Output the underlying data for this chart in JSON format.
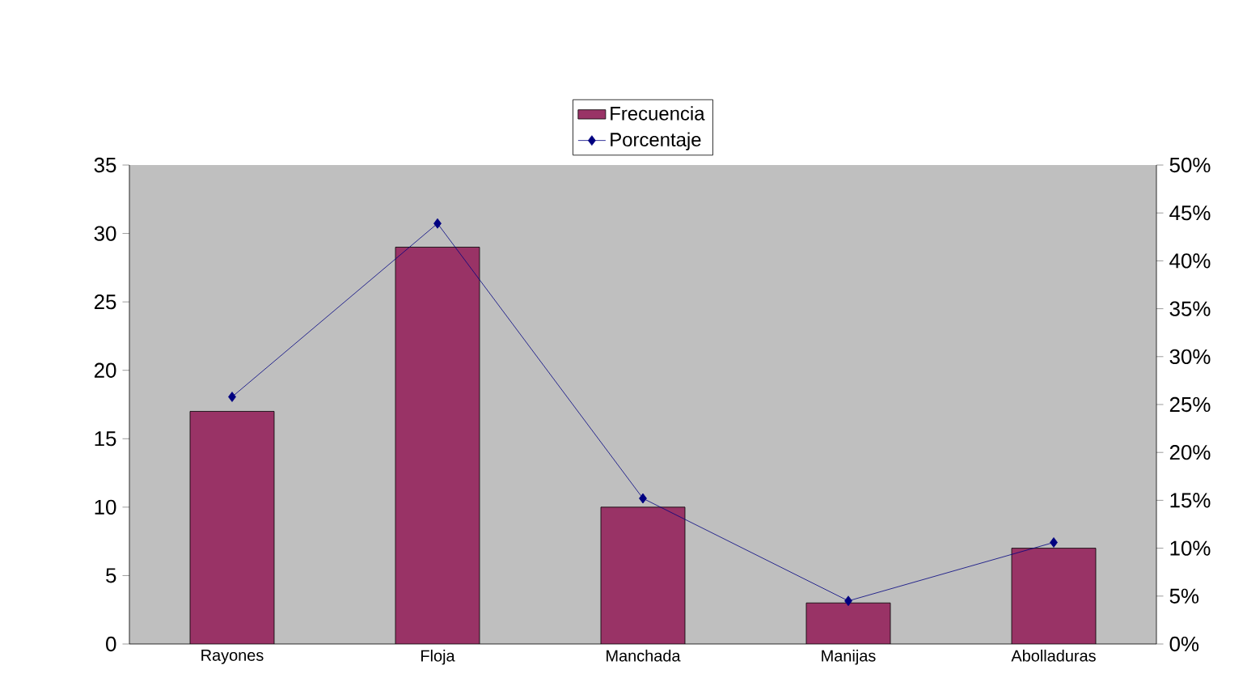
{
  "chart_data": {
    "type": "bar",
    "categories": [
      "Rayones",
      "Floja",
      "Manchada",
      "Manijas",
      "Abolladuras"
    ],
    "series": [
      {
        "name": "Frecuencia",
        "color": "#993366",
        "values": [
          17,
          29,
          10,
          3,
          7
        ]
      },
      {
        "name": "Porcentaje",
        "type": "line",
        "axis": "y2",
        "color": "#000080",
        "marker": "diamond",
        "values": [
          25.8,
          43.9,
          15.2,
          4.5,
          10.6
        ]
      }
    ],
    "ylim": [
      0,
      35
    ],
    "yticks": [
      0,
      5,
      10,
      15,
      20,
      25,
      30,
      35
    ],
    "y2lim": [
      0,
      50
    ],
    "y2ticks": [
      {
        "value": 0,
        "label": "0%"
      },
      {
        "value": 5,
        "label": "5%"
      },
      {
        "value": 10,
        "label": "10%"
      },
      {
        "value": 15,
        "label": "15%"
      },
      {
        "value": 20,
        "label": "20%"
      },
      {
        "value": 25,
        "label": "25%"
      },
      {
        "value": 30,
        "label": "30%"
      },
      {
        "value": 35,
        "label": "35%"
      },
      {
        "value": 40,
        "label": "40%"
      },
      {
        "value": 45,
        "label": "45%"
      },
      {
        "value": 50,
        "label": "50%"
      }
    ],
    "legend": "top",
    "grid": false
  }
}
